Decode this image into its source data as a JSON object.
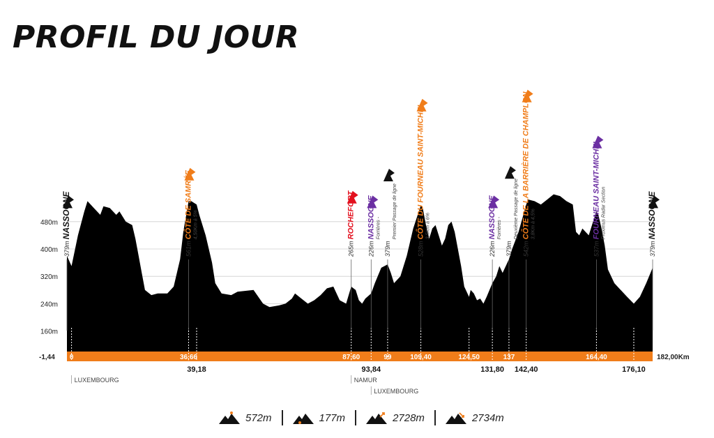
{
  "title": "PROFIL DU JOUR",
  "colors": {
    "terrain": "#000000",
    "bar": "#f07d1a",
    "climb": "#f07d1a",
    "sprint": "#6b2fa2",
    "town": "#111111",
    "start_flag": "#1f4e79",
    "green_flag": "#3a8a3a",
    "red": "#e3101e"
  },
  "chart_data": {
    "type": "area",
    "unit": "Km",
    "xlim": [
      -1.44,
      182.0
    ],
    "ylim": [
      100,
      560
    ],
    "y_ticks": [
      "480m",
      "400m",
      "320m",
      "240m",
      "160m"
    ],
    "y_tick_values": [
      480,
      400,
      320,
      240,
      160
    ],
    "start_label": "-1,44",
    "end_label": "182,00Km",
    "elevation": [
      [
        -1.44,
        380
      ],
      [
        0,
        350
      ],
      [
        2,
        440
      ],
      [
        4,
        510
      ],
      [
        5,
        540
      ],
      [
        7,
        520
      ],
      [
        9,
        500
      ],
      [
        10,
        525
      ],
      [
        12,
        520
      ],
      [
        14,
        500
      ],
      [
        15,
        510
      ],
      [
        17,
        480
      ],
      [
        19,
        470
      ],
      [
        20,
        430
      ],
      [
        21,
        380
      ],
      [
        22,
        330
      ],
      [
        23,
        280
      ],
      [
        25,
        265
      ],
      [
        27,
        270
      ],
      [
        30,
        270
      ],
      [
        32,
        290
      ],
      [
        34,
        370
      ],
      [
        35,
        450
      ],
      [
        36.66,
        540
      ],
      [
        37.5,
        540
      ],
      [
        39.18,
        530
      ],
      [
        40,
        500
      ],
      [
        42,
        440
      ],
      [
        44,
        360
      ],
      [
        45,
        300
      ],
      [
        47,
        270
      ],
      [
        50,
        265
      ],
      [
        52,
        275
      ],
      [
        55,
        278
      ],
      [
        57,
        280
      ],
      [
        60,
        240
      ],
      [
        62,
        230
      ],
      [
        65,
        235
      ],
      [
        67,
        240
      ],
      [
        69,
        255
      ],
      [
        70,
        270
      ],
      [
        72,
        255
      ],
      [
        74,
        240
      ],
      [
        76,
        250
      ],
      [
        78,
        265
      ],
      [
        80,
        285
      ],
      [
        82,
        290
      ],
      [
        84,
        250
      ],
      [
        86,
        240
      ],
      [
        87.6,
        290
      ],
      [
        89,
        280
      ],
      [
        90,
        250
      ],
      [
        91,
        240
      ],
      [
        92,
        255
      ],
      [
        93.84,
        270
      ],
      [
        95,
        300
      ],
      [
        97,
        345
      ],
      [
        99,
        355
      ],
      [
        100,
        330
      ],
      [
        101,
        300
      ],
      [
        103,
        320
      ],
      [
        105,
        380
      ],
      [
        107,
        460
      ],
      [
        109.4,
        528
      ],
      [
        110,
        520
      ],
      [
        111,
        470
      ],
      [
        112,
        430
      ],
      [
        113,
        460
      ],
      [
        114,
        470
      ],
      [
        115,
        440
      ],
      [
        116,
        410
      ],
      [
        117,
        430
      ],
      [
        118,
        470
      ],
      [
        119,
        480
      ],
      [
        120,
        450
      ],
      [
        121,
        400
      ],
      [
        122,
        350
      ],
      [
        123,
        290
      ],
      [
        124.5,
        260
      ],
      [
        125,
        280
      ],
      [
        126,
        270
      ],
      [
        127,
        250
      ],
      [
        128,
        255
      ],
      [
        129,
        240
      ],
      [
        130,
        260
      ],
      [
        131.8,
        300
      ],
      [
        133,
        320
      ],
      [
        134,
        350
      ],
      [
        135,
        330
      ],
      [
        137,
        370
      ],
      [
        138,
        400
      ],
      [
        140,
        450
      ],
      [
        142.4,
        530
      ],
      [
        143,
        545
      ],
      [
        145,
        540
      ],
      [
        147,
        530
      ],
      [
        149,
        545
      ],
      [
        151,
        560
      ],
      [
        153,
        555
      ],
      [
        155,
        540
      ],
      [
        157,
        530
      ],
      [
        158,
        450
      ],
      [
        159,
        440
      ],
      [
        160,
        460
      ],
      [
        161,
        450
      ],
      [
        162,
        440
      ],
      [
        163,
        470
      ],
      [
        164.4,
        510
      ],
      [
        165,
        500
      ],
      [
        166,
        460
      ],
      [
        167,
        410
      ],
      [
        168,
        340
      ],
      [
        170,
        300
      ],
      [
        172,
        280
      ],
      [
        174,
        260
      ],
      [
        176.1,
        240
      ],
      [
        178,
        260
      ],
      [
        180,
        300
      ],
      [
        182,
        345
      ]
    ],
    "km_markers": [
      {
        "x": 0,
        "label": "0",
        "row": "top"
      },
      {
        "x": 36.66,
        "label": "36,66",
        "row": "top"
      },
      {
        "x": 39.18,
        "label": "39,18",
        "row": "bottom"
      },
      {
        "x": 87.6,
        "label": "87,60",
        "row": "top"
      },
      {
        "x": 93.84,
        "label": "93,84",
        "row": "bottom"
      },
      {
        "x": 99,
        "label": "99",
        "row": "top"
      },
      {
        "x": 109.4,
        "label": "109,40",
        "row": "top"
      },
      {
        "x": 124.5,
        "label": "124,50",
        "row": "top"
      },
      {
        "x": 131.8,
        "label": "131,80",
        "row": "bottom"
      },
      {
        "x": 137,
        "label": "137",
        "row": "top"
      },
      {
        "x": 142.4,
        "label": "142,40",
        "row": "bottom"
      },
      {
        "x": 164.4,
        "label": "164,40",
        "row": "top"
      },
      {
        "x": 176.1,
        "label": "176,10",
        "row": "bottom"
      }
    ],
    "points": [
      {
        "x": -1.44,
        "alt": "379m",
        "name": "NASSOGNE",
        "desc": "",
        "kind": "town"
      },
      {
        "x": 36.66,
        "alt": "561m",
        "name": "CÔTE DE SAMRÉE",
        "desc": "4,50Km à 5%",
        "kind": "climb"
      },
      {
        "x": 87.6,
        "alt": "265m",
        "name": "ROCHEFORT",
        "desc": "",
        "kind": "red"
      },
      {
        "x": 93.84,
        "alt": "226m",
        "name": "NASSOGNE",
        "desc": "Forrières -",
        "kind": "sprint"
      },
      {
        "x": 99,
        "alt": "379m",
        "name": "",
        "desc": "Premier Passage de ligne",
        "kind": "line"
      },
      {
        "x": 109.4,
        "alt": "528m",
        "name": "CÔTE DU FOURNEAU SAINT-MICHEL",
        "desc": "3,5Km à 6%",
        "kind": "climb"
      },
      {
        "x": 131.8,
        "alt": "226m",
        "name": "NASSOGNE",
        "desc": "Forrières -",
        "kind": "sprint"
      },
      {
        "x": 137,
        "alt": "379m",
        "name": "",
        "desc": "Deuxième Passage de ligne",
        "kind": "line"
      },
      {
        "x": 142.4,
        "alt": "542m",
        "name": "CÔTE DE LA BARRIÈRE DE CHAMPLON",
        "desc": "3,8Km à 4,5%",
        "kind": "climb"
      },
      {
        "x": 164.4,
        "alt": "537m",
        "name": "FOURNEAU SAINT-MICHEL",
        "desc": "Proximus Radar Section",
        "kind": "sprint"
      },
      {
        "x": 182.0,
        "alt": "379m",
        "name": "NASSOGNE",
        "desc": "",
        "kind": "town"
      }
    ],
    "regions": [
      {
        "x": 0,
        "label": "LUXEMBOURG",
        "row": 0
      },
      {
        "x": 87.6,
        "label": "NAMUR",
        "row": 0
      },
      {
        "x": 93.84,
        "label": "LUXEMBOURG",
        "row": 1
      }
    ]
  },
  "footer": {
    "stats": [
      {
        "icon": "max-altitude-icon",
        "value": "572m"
      },
      {
        "icon": "min-altitude-icon",
        "value": "177m"
      },
      {
        "icon": "total-climb-icon",
        "value": "2728m"
      },
      {
        "icon": "total-descent-icon",
        "value": "2734m"
      }
    ]
  }
}
